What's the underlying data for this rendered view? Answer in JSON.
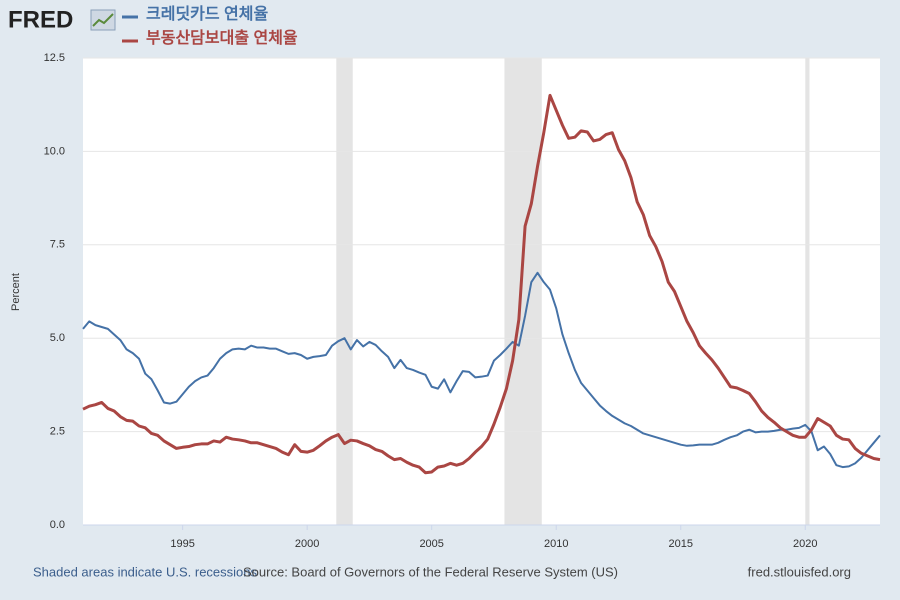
{
  "chart_data": {
    "type": "line",
    "logo": "FRED",
    "ylabel": "Percent",
    "note": "Shaded areas indicate U.S. recessions",
    "source": "Source: Board of Governors of the Federal Reserve System (US)",
    "site": "fred.stlouisfed.org",
    "xlim": [
      1991,
      2023
    ],
    "ylim": [
      0,
      12.5
    ],
    "xticks": [
      1995,
      2000,
      2005,
      2010,
      2015,
      2020
    ],
    "yticks": [
      {
        "value": 0,
        "label": "0.0"
      },
      2.5,
      {
        "value": 5,
        "label": "5.0"
      },
      7.5,
      {
        "value": 10,
        "label": "10.0"
      },
      12.5
    ],
    "grid": true,
    "recessions": [
      [
        2001.17,
        2001.83
      ],
      [
        2007.92,
        2009.42
      ],
      [
        2020.0,
        2020.17
      ]
    ],
    "x": [
      1991,
      1991.25,
      1991.5,
      1991.75,
      1992,
      1992.25,
      1992.5,
      1992.75,
      1993,
      1993.25,
      1993.5,
      1993.75,
      1994,
      1994.25,
      1994.5,
      1994.75,
      1995,
      1995.25,
      1995.5,
      1995.75,
      1996,
      1996.25,
      1996.5,
      1996.75,
      1997,
      1997.25,
      1997.5,
      1997.75,
      1998,
      1998.25,
      1998.5,
      1998.75,
      1999,
      1999.25,
      1999.5,
      1999.75,
      2000,
      2000.25,
      2000.5,
      2000.75,
      2001,
      2001.25,
      2001.5,
      2001.75,
      2002,
      2002.25,
      2002.5,
      2002.75,
      2003,
      2003.25,
      2003.5,
      2003.75,
      2004,
      2004.25,
      2004.5,
      2004.75,
      2005,
      2005.25,
      2005.5,
      2005.75,
      2006,
      2006.25,
      2006.5,
      2006.75,
      2007,
      2007.25,
      2007.5,
      2007.75,
      2008,
      2008.25,
      2008.5,
      2008.75,
      2009,
      2009.25,
      2009.5,
      2009.75,
      2010,
      2010.25,
      2010.5,
      2010.75,
      2011,
      2011.25,
      2011.5,
      2011.75,
      2012,
      2012.25,
      2012.5,
      2012.75,
      2013,
      2013.25,
      2013.5,
      2013.75,
      2014,
      2014.25,
      2014.5,
      2014.75,
      2015,
      2015.25,
      2015.5,
      2015.75,
      2016,
      2016.25,
      2016.5,
      2016.75,
      2017,
      2017.25,
      2017.5,
      2017.75,
      2018,
      2018.25,
      2018.5,
      2018.75,
      2019,
      2019.25,
      2019.5,
      2019.75,
      2020,
      2020.25,
      2020.5,
      2020.75,
      2021,
      2021.25,
      2021.5,
      2021.75,
      2022,
      2022.25,
      2022.5,
      2022.75,
      2023
    ],
    "series": [
      {
        "name": "크레딧카드 연체율",
        "color": "#4572a7",
        "values": [
          5.25,
          5.45,
          5.35,
          5.3,
          5.25,
          5.1,
          4.95,
          4.7,
          4.6,
          4.45,
          4.05,
          3.9,
          3.6,
          3.28,
          3.25,
          3.3,
          3.5,
          3.7,
          3.85,
          3.95,
          4.0,
          4.2,
          4.45,
          4.6,
          4.7,
          4.72,
          4.7,
          4.8,
          4.75,
          4.75,
          4.72,
          4.72,
          4.65,
          4.58,
          4.6,
          4.55,
          4.45,
          4.5,
          4.52,
          4.55,
          4.8,
          4.92,
          5.0,
          4.7,
          4.95,
          4.78,
          4.9,
          4.82,
          4.65,
          4.5,
          4.2,
          4.42,
          4.2,
          4.15,
          4.08,
          4.02,
          3.7,
          3.65,
          3.9,
          3.55,
          3.85,
          4.12,
          4.1,
          3.95,
          3.97,
          4.0,
          4.4,
          4.55,
          4.72,
          4.9,
          4.8,
          5.6,
          6.5,
          6.75,
          6.5,
          6.3,
          5.8,
          5.1,
          4.6,
          4.15,
          3.8,
          3.6,
          3.4,
          3.2,
          3.05,
          2.92,
          2.82,
          2.72,
          2.65,
          2.55,
          2.45,
          2.4,
          2.35,
          2.3,
          2.25,
          2.2,
          2.15,
          2.12,
          2.13,
          2.15,
          2.15,
          2.15,
          2.2,
          2.28,
          2.35,
          2.4,
          2.5,
          2.55,
          2.48,
          2.5,
          2.5,
          2.52,
          2.55,
          2.55,
          2.58,
          2.6,
          2.68,
          2.5,
          2.0,
          2.1,
          1.9,
          1.6,
          1.55,
          1.57,
          1.65,
          1.8,
          2.0,
          2.2,
          2.4
        ]
      },
      {
        "name": "부동산담보대출 연체율",
        "color": "#aa4643",
        "values": [
          3.1,
          3.18,
          3.22,
          3.28,
          3.12,
          3.05,
          2.9,
          2.8,
          2.78,
          2.65,
          2.6,
          2.45,
          2.4,
          2.25,
          2.15,
          2.05,
          2.08,
          2.1,
          2.15,
          2.17,
          2.17,
          2.25,
          2.22,
          2.35,
          2.3,
          2.28,
          2.25,
          2.2,
          2.2,
          2.15,
          2.1,
          2.05,
          1.95,
          1.88,
          2.15,
          1.97,
          1.95,
          2.0,
          2.12,
          2.25,
          2.35,
          2.42,
          2.18,
          2.27,
          2.25,
          2.18,
          2.12,
          2.02,
          1.97,
          1.85,
          1.75,
          1.78,
          1.68,
          1.6,
          1.55,
          1.4,
          1.42,
          1.55,
          1.58,
          1.65,
          1.6,
          1.65,
          1.78,
          1.95,
          2.1,
          2.3,
          2.7,
          3.15,
          3.65,
          4.4,
          5.5,
          8.0,
          8.6,
          9.6,
          10.5,
          11.5,
          11.1,
          10.7,
          10.35,
          10.38,
          10.55,
          10.52,
          10.28,
          10.32,
          10.45,
          10.5,
          10.05,
          9.75,
          9.3,
          8.65,
          8.3,
          7.75,
          7.45,
          7.05,
          6.5,
          6.25,
          5.85,
          5.45,
          5.15,
          4.8,
          4.6,
          4.42,
          4.2,
          3.95,
          3.7,
          3.67,
          3.6,
          3.52,
          3.3,
          3.05,
          2.88,
          2.75,
          2.6,
          2.5,
          2.4,
          2.35,
          2.35,
          2.55,
          2.85,
          2.75,
          2.65,
          2.4,
          2.3,
          2.28,
          2.05,
          1.92,
          1.85,
          1.78,
          1.75
        ]
      }
    ]
  }
}
